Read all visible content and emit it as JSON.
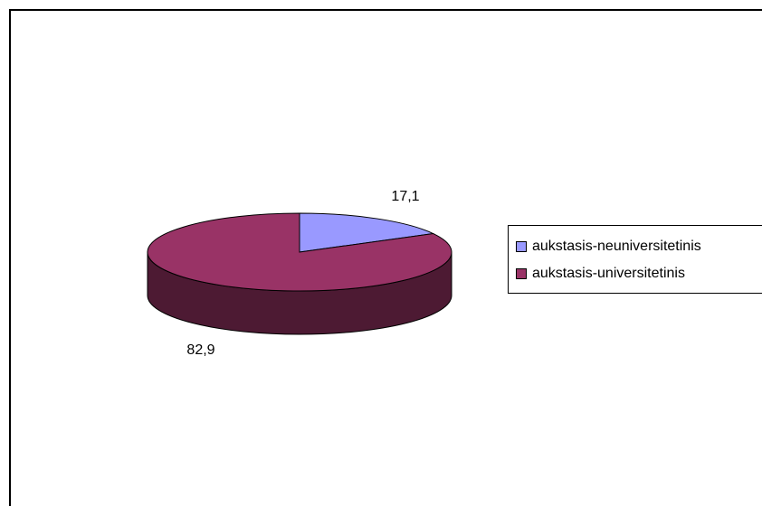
{
  "chart_data": {
    "type": "pie",
    "style": "3d",
    "title": "",
    "slices": [
      {
        "label": "aukstasis-neuniversitetinis",
        "value": 17.1,
        "value_label": "17,1",
        "color": "#9999FF",
        "side_color": "#5c5c99"
      },
      {
        "label": "aukstasis-universitetinis",
        "value": 82.9,
        "value_label": "82,9",
        "color": "#993366",
        "side_color": "#4d1a33"
      }
    ],
    "legend_position": "right"
  }
}
